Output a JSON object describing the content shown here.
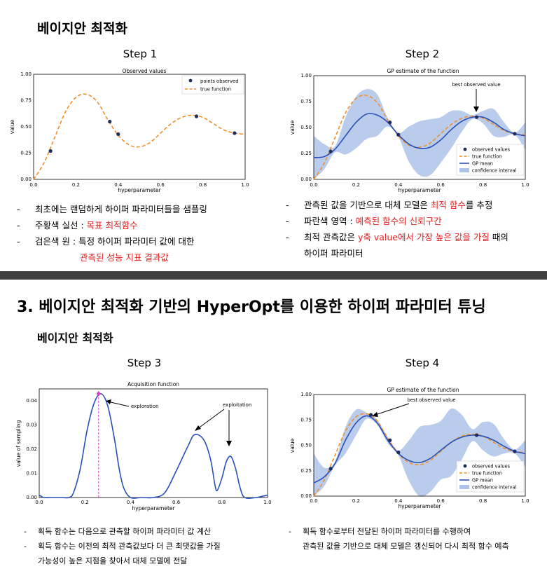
{
  "slide1": {
    "title": "베이지안 최적화",
    "step1_label": "Step 1",
    "step2_label": "Step 2",
    "plot1": {
      "title": "Observed values",
      "xlabel": "hyperparameter",
      "ylabel": "value",
      "xticks": [
        "0.0",
        "0.2",
        "0.4",
        "0.6",
        "0.8",
        "1.0"
      ],
      "yticks": [
        "0.00",
        "0.25",
        "0.50",
        "0.75",
        "1.00"
      ],
      "legend": [
        "points observed",
        "true function"
      ]
    },
    "plot2": {
      "title": "GP estimate of the function",
      "xlabel": "hyperparameter",
      "ylabel": "value",
      "xticks": [
        "0.0",
        "0.2",
        "0.4",
        "0.6",
        "0.8",
        "1.0"
      ],
      "yticks": [
        "0.00",
        "0.25",
        "0.50",
        "0.75",
        "1.00"
      ],
      "annotation": "best observed value",
      "legend": [
        "observed values",
        "true function",
        "GP mean",
        "confidence interval"
      ]
    },
    "left_bullets": {
      "b1": "최초에는 랜덤하게 하이퍼 파라미터들을 샘플링",
      "b2_pre": "주황색 실선 : ",
      "b2_red": "목표 최적함수",
      "b3": "검은색 원 : 특정 하이퍼 파라미터 값에 대한",
      "b3_red": "관측된 성능 지표 결과값"
    },
    "right_bullets": {
      "b1_pre": "관측된 값을 기반으로 대체 모델은 ",
      "b1_red": "최적 함수",
      "b1_post": "를 추정",
      "b2_pre": "파란색 영역 : ",
      "b2_red": "예측된 함수의 신뢰구간",
      "b3_pre": "최적 관측값은 ",
      "b3_red": "y축 value에서 가장 높은 값을 가질",
      "b3_post": " 때의",
      "b3_line2": "하이퍼 파라미터"
    },
    "bullet_dash": "-"
  },
  "slide2": {
    "title": "3. 베이지안 최적화 기반의 HyperOpt를 이용한 하이퍼 파라미터 튜닝",
    "subtitle": "베이지안 최적화",
    "step3_label": "Step 3",
    "step4_label": "Step 4",
    "plot3": {
      "title": "Acquisition function",
      "xlabel": "hyperparameter",
      "ylabel": "value of sampling",
      "xticks": [
        "0.0",
        "0.2",
        "0.4",
        "0.6",
        "0.8",
        "1.0"
      ],
      "yticks": [
        "0.00",
        "0.01",
        "0.02",
        "0.03",
        "0.04"
      ],
      "ann_exploration": "exploration",
      "ann_exploitation": "exploitation"
    },
    "plot4": {
      "title": "GP estimate of the function",
      "xlabel": "hyperparameter",
      "ylabel": "value",
      "xticks": [
        "0.0",
        "0.2",
        "0.4",
        "0.6",
        "0.8",
        "1.0"
      ],
      "yticks": [
        "0.00",
        "0.25",
        "0.50",
        "0.75",
        "1.00"
      ],
      "annotation": "best observed value",
      "legend": [
        "observed values",
        "true function",
        "GP mean",
        "confidence interval"
      ]
    },
    "left_bullets": {
      "b1": "획득 함수는 다음으로 관측할 하이퍼 파라미터 값 계산",
      "b2": "획득 함수는 이전의 최적 관측값보다 더 큰 최댓값을 가질",
      "b2_line2": "가능성이 높은 지점을 찾아서 대체 모델에 전달"
    },
    "right_bullets": {
      "b1": "획득 함수로부터 전달된 하이퍼 파라미터를 수행하여",
      "b1_line2": "관측된 값을 기반으로 대체 모델은 갱신되어 다시 최적 함수 예측"
    },
    "bullet_dash": "-"
  },
  "colors": {
    "true_function": "#f28e2b",
    "gp_mean": "#2850b8",
    "confidence": "#aec3e8",
    "points": "#1f2d5a",
    "highlight_red": "#e02020",
    "magenta": "#d040d0"
  },
  "chart_data": [
    {
      "type": "line",
      "title": "Observed values",
      "xlabel": "hyperparameter",
      "ylabel": "value",
      "xlim": [
        0,
        1
      ],
      "ylim": [
        0,
        1
      ],
      "series": [
        {
          "name": "true function",
          "x": [
            0.0,
            0.05,
            0.1,
            0.15,
            0.2,
            0.25,
            0.3,
            0.35,
            0.4,
            0.45,
            0.5,
            0.55,
            0.6,
            0.65,
            0.7,
            0.75,
            0.8,
            0.85,
            0.9,
            0.95,
            1.0
          ],
          "values": [
            0.0,
            0.16,
            0.4,
            0.64,
            0.78,
            0.81,
            0.74,
            0.57,
            0.42,
            0.33,
            0.31,
            0.35,
            0.44,
            0.53,
            0.59,
            0.61,
            0.59,
            0.53,
            0.47,
            0.44,
            0.43
          ]
        },
        {
          "name": "points observed",
          "x": [
            0.08,
            0.36,
            0.4,
            0.77,
            0.95
          ],
          "values": [
            0.27,
            0.55,
            0.43,
            0.6,
            0.44
          ]
        }
      ]
    },
    {
      "type": "line",
      "title": "GP estimate of the function (Step 2)",
      "xlabel": "hyperparameter",
      "ylabel": "value",
      "xlim": [
        0,
        1
      ],
      "ylim": [
        0,
        1
      ],
      "series": [
        {
          "name": "true function",
          "x": [
            0.0,
            0.05,
            0.1,
            0.15,
            0.2,
            0.25,
            0.3,
            0.35,
            0.4,
            0.45,
            0.5,
            0.55,
            0.6,
            0.65,
            0.7,
            0.75,
            0.8,
            0.85,
            0.9,
            0.95,
            1.0
          ],
          "values": [
            0.0,
            0.16,
            0.4,
            0.64,
            0.78,
            0.81,
            0.74,
            0.57,
            0.42,
            0.33,
            0.31,
            0.35,
            0.44,
            0.53,
            0.59,
            0.61,
            0.59,
            0.53,
            0.47,
            0.44,
            0.43
          ]
        },
        {
          "name": "GP mean",
          "x": [
            0.0,
            0.05,
            0.1,
            0.15,
            0.2,
            0.25,
            0.3,
            0.35,
            0.4,
            0.45,
            0.5,
            0.55,
            0.6,
            0.65,
            0.7,
            0.75,
            0.8,
            0.85,
            0.9,
            0.95,
            1.0
          ],
          "values": [
            0.21,
            0.22,
            0.29,
            0.42,
            0.55,
            0.63,
            0.62,
            0.55,
            0.43,
            0.34,
            0.3,
            0.31,
            0.38,
            0.48,
            0.56,
            0.6,
            0.6,
            0.55,
            0.48,
            0.44,
            0.42
          ]
        },
        {
          "name": "confidence upper",
          "x": [
            0.0,
            0.05,
            0.1,
            0.15,
            0.2,
            0.25,
            0.3,
            0.35,
            0.4,
            0.45,
            0.5,
            0.55,
            0.6,
            0.65,
            0.7,
            0.75,
            0.8,
            0.85,
            0.9,
            0.95,
            1.0
          ],
          "values": [
            0.42,
            0.34,
            0.32,
            0.6,
            0.8,
            0.87,
            0.82,
            0.59,
            0.45,
            0.51,
            0.56,
            0.58,
            0.6,
            0.66,
            0.66,
            0.62,
            0.66,
            0.68,
            0.55,
            0.45,
            0.55
          ]
        },
        {
          "name": "confidence lower",
          "x": [
            0.0,
            0.05,
            0.1,
            0.15,
            0.2,
            0.25,
            0.3,
            0.35,
            0.4,
            0.45,
            0.5,
            0.55,
            0.6,
            0.65,
            0.7,
            0.75,
            0.8,
            0.85,
            0.9,
            0.95,
            1.0
          ],
          "values": [
            0.0,
            0.1,
            0.26,
            0.24,
            0.3,
            0.39,
            0.42,
            0.51,
            0.41,
            0.17,
            0.04,
            0.04,
            0.16,
            0.3,
            0.46,
            0.58,
            0.54,
            0.42,
            0.41,
            0.43,
            0.29
          ]
        },
        {
          "name": "observed values",
          "x": [
            0.08,
            0.36,
            0.4,
            0.77,
            0.95
          ],
          "values": [
            0.27,
            0.55,
            0.43,
            0.6,
            0.44
          ]
        }
      ]
    },
    {
      "type": "line",
      "title": "Acquisition function",
      "xlabel": "hyperparameter",
      "ylabel": "value of sampling",
      "xlim": [
        0,
        1
      ],
      "ylim": [
        0,
        0.045
      ],
      "series": [
        {
          "name": "acquisition",
          "x": [
            0.0,
            0.02,
            0.05,
            0.1,
            0.13,
            0.15,
            0.18,
            0.21,
            0.24,
            0.27,
            0.3,
            0.33,
            0.35,
            0.37,
            0.4,
            0.45,
            0.5,
            0.55,
            0.6,
            0.65,
            0.68,
            0.72,
            0.75,
            0.77,
            0.78,
            0.8,
            0.82,
            0.84,
            0.86,
            0.88,
            0.9,
            0.95,
            1.0
          ],
          "values": [
            0.001,
            0.0,
            0.0,
            0.0,
            0.0,
            0.002,
            0.012,
            0.028,
            0.039,
            0.043,
            0.038,
            0.024,
            0.012,
            0.004,
            0.0,
            0.0,
            0.0,
            0.002,
            0.011,
            0.021,
            0.026,
            0.024,
            0.016,
            0.005,
            0.003,
            0.008,
            0.015,
            0.017,
            0.012,
            0.004,
            0.0,
            0.0,
            0.001
          ]
        }
      ],
      "annotations": [
        {
          "text": "exploration",
          "x": 0.26
        },
        {
          "text": "exploitation",
          "x": 0.82
        }
      ],
      "max_marker_x": 0.26
    },
    {
      "type": "line",
      "title": "GP estimate of the function (Step 4)",
      "xlabel": "hyperparameter",
      "ylabel": "value",
      "xlim": [
        0,
        1
      ],
      "ylim": [
        0,
        1
      ],
      "series": [
        {
          "name": "true function",
          "x": [
            0.0,
            0.05,
            0.1,
            0.15,
            0.2,
            0.25,
            0.3,
            0.35,
            0.4,
            0.45,
            0.5,
            0.55,
            0.6,
            0.65,
            0.7,
            0.75,
            0.8,
            0.85,
            0.9,
            0.95,
            1.0
          ],
          "values": [
            0.0,
            0.16,
            0.4,
            0.64,
            0.78,
            0.81,
            0.74,
            0.57,
            0.42,
            0.33,
            0.31,
            0.35,
            0.44,
            0.53,
            0.59,
            0.61,
            0.59,
            0.53,
            0.47,
            0.44,
            0.43
          ]
        },
        {
          "name": "GP mean",
          "x": [
            0.0,
            0.05,
            0.1,
            0.15,
            0.2,
            0.25,
            0.3,
            0.35,
            0.4,
            0.45,
            0.5,
            0.55,
            0.6,
            0.65,
            0.7,
            0.75,
            0.8,
            0.85,
            0.9,
            0.95,
            1.0
          ],
          "values": [
            0.13,
            0.19,
            0.32,
            0.55,
            0.72,
            0.79,
            0.72,
            0.55,
            0.42,
            0.35,
            0.33,
            0.37,
            0.45,
            0.53,
            0.58,
            0.6,
            0.59,
            0.55,
            0.49,
            0.44,
            0.42
          ]
        },
        {
          "name": "confidence upper",
          "x": [
            0.0,
            0.05,
            0.1,
            0.15,
            0.2,
            0.25,
            0.3,
            0.35,
            0.4,
            0.45,
            0.5,
            0.55,
            0.6,
            0.65,
            0.7,
            0.75,
            0.8,
            0.85,
            0.9,
            0.95,
            1.0
          ],
          "values": [
            0.42,
            0.28,
            0.34,
            0.68,
            0.85,
            0.82,
            0.75,
            0.58,
            0.45,
            0.55,
            0.68,
            0.7,
            0.74,
            0.86,
            0.8,
            0.66,
            0.73,
            0.71,
            0.56,
            0.46,
            0.55
          ]
        },
        {
          "name": "confidence lower",
          "x": [
            0.0,
            0.05,
            0.1,
            0.15,
            0.2,
            0.25,
            0.3,
            0.35,
            0.4,
            0.45,
            0.5,
            0.55,
            0.6,
            0.65,
            0.7,
            0.75,
            0.8,
            0.85,
            0.9,
            0.95,
            1.0
          ],
          "values": [
            0.0,
            0.1,
            0.3,
            0.42,
            0.6,
            0.76,
            0.7,
            0.52,
            0.4,
            0.15,
            0.0,
            0.04,
            0.16,
            0.2,
            0.36,
            0.54,
            0.45,
            0.39,
            0.42,
            0.42,
            0.29
          ]
        },
        {
          "name": "observed values",
          "x": [
            0.08,
            0.27,
            0.36,
            0.4,
            0.77,
            0.95
          ],
          "values": [
            0.27,
            0.8,
            0.55,
            0.43,
            0.6,
            0.44
          ]
        }
      ]
    }
  ]
}
